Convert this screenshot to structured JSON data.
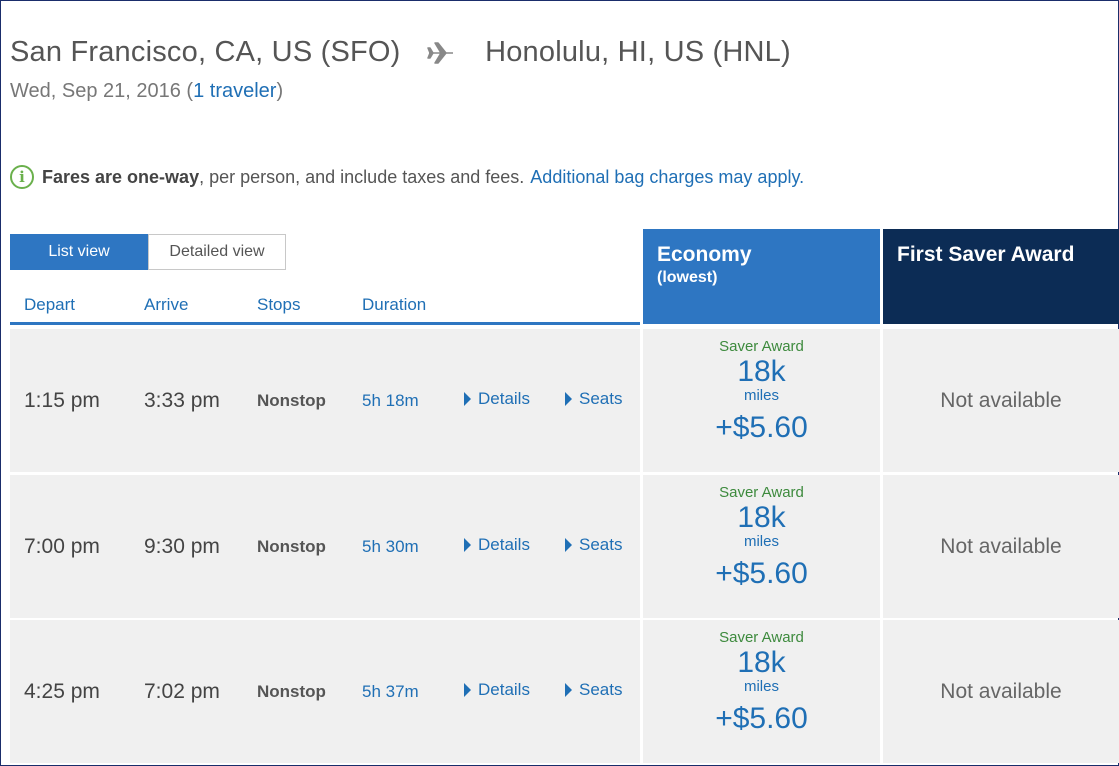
{
  "header": {
    "origin": "San Francisco, CA, US (SFO)",
    "destination": "Honolulu, HI, US (HNL)",
    "date_prefix": "Wed, Sep 21, 2016 (",
    "travelers_link": "1 traveler",
    "date_suffix": ")"
  },
  "notice": {
    "bold": "Fares are one-way",
    "text": ", per person, and include taxes and fees.",
    "link": "Additional bag charges may apply."
  },
  "view_toggle": {
    "list": "List view",
    "detailed": "Detailed view"
  },
  "columns": {
    "depart": "Depart",
    "arrive": "Arrive",
    "stops": "Stops",
    "duration": "Duration"
  },
  "fare_columns": {
    "economy_title": "Economy",
    "economy_sub": "(lowest)",
    "first_title": "First Saver Award"
  },
  "flights": [
    {
      "depart": "1:15 pm",
      "arrive": "3:33 pm",
      "stops": "Nonstop",
      "duration": "5h 18m",
      "details": "Details",
      "seats": "Seats",
      "econ": {
        "award": "Saver Award",
        "miles": "18k",
        "miles_label": "miles",
        "fee": "+$5.60"
      },
      "first": "Not available"
    },
    {
      "depart": "7:00 pm",
      "arrive": "9:30 pm",
      "stops": "Nonstop",
      "duration": "5h 30m",
      "details": "Details",
      "seats": "Seats",
      "econ": {
        "award": "Saver Award",
        "miles": "18k",
        "miles_label": "miles",
        "fee": "+$5.60"
      },
      "first": "Not available"
    },
    {
      "depart": "4:25 pm",
      "arrive": "7:02 pm",
      "stops": "Nonstop",
      "duration": "5h 37m",
      "details": "Details",
      "seats": "Seats",
      "econ": {
        "award": "Saver Award",
        "miles": "18k",
        "miles_label": "miles",
        "fee": "+$5.60"
      },
      "first": "Not available"
    }
  ],
  "icons": {
    "route": "airplane-icon",
    "notice": "info-icon",
    "expand": "caret-right-icon"
  },
  "colors": {
    "accent": "#2e76c2",
    "first_header": "#0c2c55",
    "saver_green": "#3d8a3d",
    "row_bg": "#f0f0f0"
  }
}
